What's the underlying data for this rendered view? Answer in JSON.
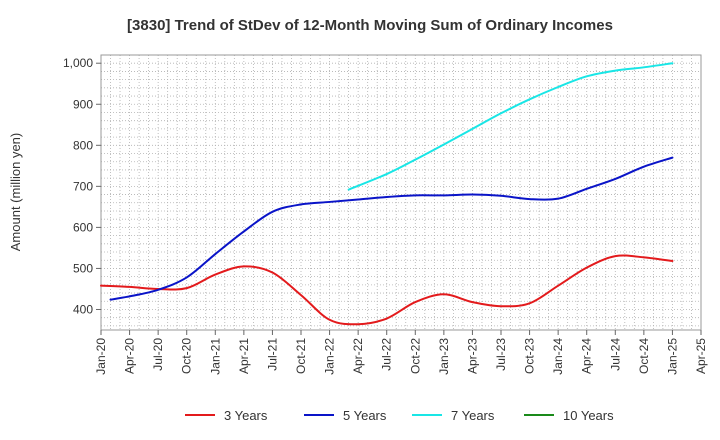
{
  "chart_data": {
    "type": "line",
    "title": "[3830]  Trend of StDev of 12-Month Moving Sum of Ordinary Incomes",
    "xlabel": "",
    "ylabel": "Amount (million yen)",
    "x_ticks": [
      "Jan-20",
      "Apr-20",
      "Jul-20",
      "Oct-20",
      "Jan-21",
      "Apr-21",
      "Jul-21",
      "Oct-21",
      "Jan-22",
      "Apr-22",
      "Jul-22",
      "Oct-22",
      "Jan-23",
      "Apr-23",
      "Jul-23",
      "Oct-23",
      "Jan-24",
      "Apr-24",
      "Jul-24",
      "Oct-24",
      "Jan-25",
      "Apr-25"
    ],
    "y_ticks": [
      400,
      500,
      600,
      700,
      800,
      900,
      1000
    ],
    "y_tick_labels": [
      "400",
      "500",
      "600",
      "700",
      "800",
      "900",
      "1,000"
    ],
    "ylim": [
      350,
      1020
    ],
    "grid": true,
    "legend_position": "bottom",
    "series": [
      {
        "name": "3 Years",
        "color": "#e31a1c",
        "x": [
          "2020-01",
          "2020-04",
          "2020-07",
          "2020-10",
          "2021-01",
          "2021-04",
          "2021-07",
          "2021-10",
          "2022-01",
          "2022-04",
          "2022-07",
          "2022-10",
          "2023-01",
          "2023-04",
          "2023-07",
          "2023-10",
          "2024-01",
          "2024-04",
          "2024-07",
          "2024-10",
          "2025-01"
        ],
        "values": [
          458,
          455,
          450,
          452,
          485,
          505,
          490,
          435,
          375,
          364,
          378,
          418,
          437,
          418,
          408,
          415,
          458,
          502,
          530,
          527,
          518
        ]
      },
      {
        "name": "5 Years",
        "color": "#0a14c8",
        "x": [
          "2020-02",
          "2020-04",
          "2020-07",
          "2020-10",
          "2021-01",
          "2021-04",
          "2021-07",
          "2021-10",
          "2022-01",
          "2022-04",
          "2022-07",
          "2022-10",
          "2023-01",
          "2023-04",
          "2023-07",
          "2023-10",
          "2024-01",
          "2024-04",
          "2024-07",
          "2024-10",
          "2025-01"
        ],
        "values": [
          424,
          432,
          448,
          478,
          535,
          590,
          638,
          656,
          662,
          668,
          674,
          678,
          678,
          680,
          677,
          669,
          670,
          694,
          718,
          748,
          770
        ]
      },
      {
        "name": "7 Years",
        "color": "#19e6e6",
        "x": [
          "2022-03",
          "2022-07",
          "2022-10",
          "2023-01",
          "2023-04",
          "2023-07",
          "2023-10",
          "2024-01",
          "2024-04",
          "2024-07",
          "2024-10",
          "2025-01"
        ],
        "values": [
          692,
          730,
          765,
          802,
          840,
          878,
          912,
          942,
          968,
          982,
          990,
          1000
        ]
      },
      {
        "name": "10 Years",
        "color": "#1a8a1a",
        "x": [],
        "values": []
      }
    ]
  }
}
